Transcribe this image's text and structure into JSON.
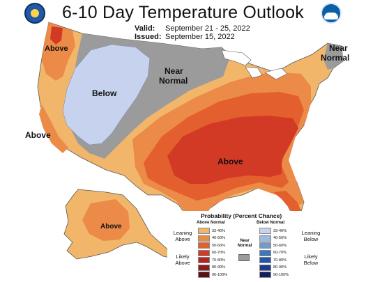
{
  "header": {
    "title": "6-10 Day Temperature Outlook",
    "valid_label": "Valid:",
    "valid_value": "September 21 - 25, 2022",
    "issued_label": "Issued:",
    "issued_value": "September 15, 2022"
  },
  "logos": {
    "left": "doc-seal-icon",
    "right": "noaa-logo-icon"
  },
  "map_labels": {
    "above_nw": "Above",
    "below_west": "Below",
    "near_normal_north_1": "Near",
    "near_normal_north_2": "Normal",
    "near_normal_ne_1": "Near",
    "near_normal_ne_2": "Normal",
    "above_ca": "Above",
    "above_se": "Above",
    "above_ak": "Above"
  },
  "legend": {
    "title": "Probability (Percent Chance)",
    "above_header": "Above Normal",
    "below_header": "Below Normal",
    "above_rows": [
      {
        "label": "33-40%",
        "color": "#f2b66a"
      },
      {
        "label": "40-50%",
        "color": "#ec8a47"
      },
      {
        "label": "50-60%",
        "color": "#e35f2e"
      },
      {
        "label": "60-70%",
        "color": "#d33a26"
      },
      {
        "label": "70-80%",
        "color": "#b32424"
      },
      {
        "label": "80-90%",
        "color": "#8c1b1b"
      },
      {
        "label": "90-100%",
        "color": "#5c1010"
      }
    ],
    "below_rows": [
      {
        "label": "33-40%",
        "color": "#c7d3ee"
      },
      {
        "label": "40-50%",
        "color": "#9fb8e0"
      },
      {
        "label": "50-60%",
        "color": "#6e9ad0"
      },
      {
        "label": "60-70%",
        "color": "#3f75bf"
      },
      {
        "label": "70-80%",
        "color": "#2456a6"
      },
      {
        "label": "80-90%",
        "color": "#1b3a8c"
      },
      {
        "label": "90-100%",
        "color": "#10225c"
      }
    ],
    "leaning_above": "Leaning Above",
    "likely_above": "Likely Above",
    "near_normal": "Near Normal",
    "near_color": "#9b9b9b",
    "leaning_below": "Leaning Below",
    "likely_below": "Likely Below"
  }
}
